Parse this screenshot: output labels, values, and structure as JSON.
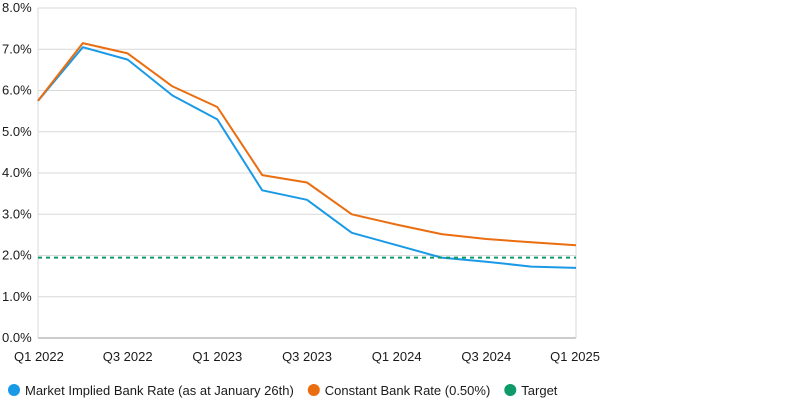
{
  "chart_data": {
    "type": "line",
    "x": [
      "Q1 2022",
      "Q2 2022",
      "Q3 2022",
      "Q4 2022",
      "Q1 2023",
      "Q2 2023",
      "Q3 2023",
      "Q4 2023",
      "Q1 2024",
      "Q2 2024",
      "Q3 2024",
      "Q4 2024",
      "Q1 2025"
    ],
    "xticks": [
      "Q1 2022",
      "Q3 2022",
      "Q1 2023",
      "Q3 2023",
      "Q1 2024",
      "Q3 2024",
      "Q1 2025"
    ],
    "yticks": [
      "0.0%",
      "1.0%",
      "2.0%",
      "3.0%",
      "4.0%",
      "5.0%",
      "6.0%",
      "7.0%",
      "8.0%"
    ],
    "ylim": [
      0,
      8
    ],
    "ylabel": "",
    "xlabel": "",
    "title": "",
    "grid": "horizontal",
    "legend_position": "bottom",
    "series": [
      {
        "name": "Market Implied Bank Rate (as at January 26th)",
        "color": "#1a9ae6",
        "style": "solid",
        "values": [
          5.75,
          7.05,
          6.75,
          5.88,
          5.3,
          3.58,
          3.35,
          2.55,
          2.25,
          1.95,
          1.85,
          1.73,
          1.7
        ]
      },
      {
        "name": "Constant Bank Rate (0.50%)",
        "color": "#ea6d0f",
        "style": "solid",
        "values": [
          5.75,
          7.15,
          6.9,
          6.1,
          5.6,
          3.95,
          3.77,
          3.0,
          2.75,
          2.52,
          2.4,
          2.32,
          2.25
        ]
      },
      {
        "name": "Target",
        "color": "#0f9a6a",
        "style": "dashed",
        "values": [
          1.95,
          1.95,
          1.95,
          1.95,
          1.95,
          1.95,
          1.95,
          1.95,
          1.95,
          1.95,
          1.95,
          1.95,
          1.95
        ]
      }
    ]
  }
}
